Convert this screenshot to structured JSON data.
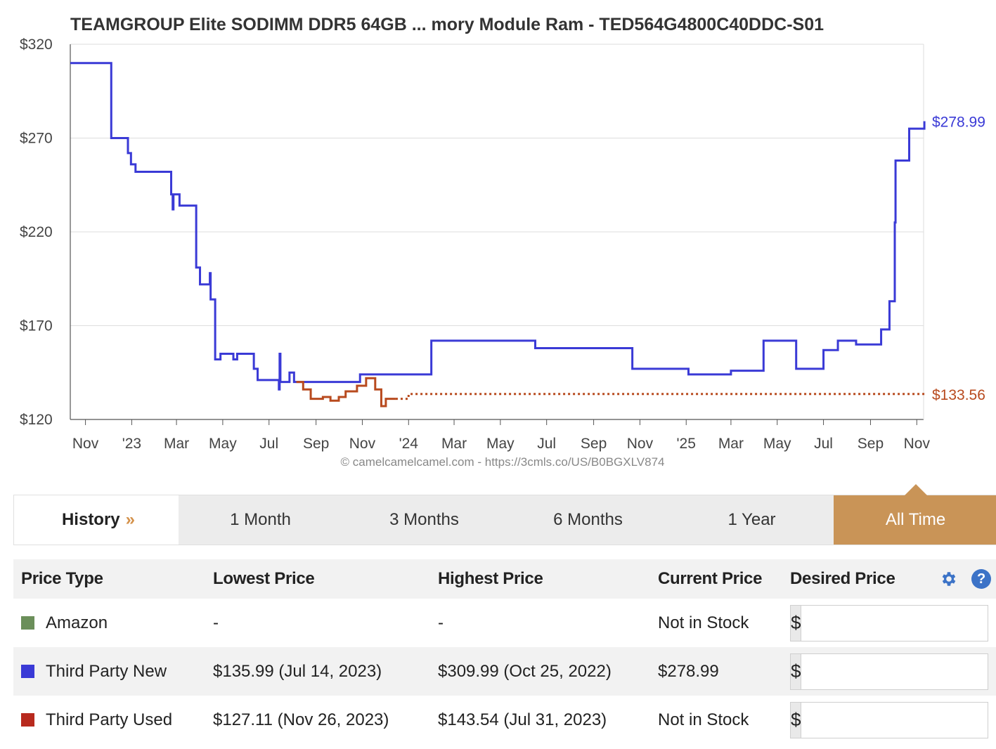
{
  "chart_data": {
    "type": "line",
    "title": "TEAMGROUP Elite SODIMM DDR5 64GB ... mory Module Ram - TED564G4800C40DDC-S01",
    "credit": "© camelcamelcamel.com - https://3cmls.co/US/B0BGXLV874",
    "ylim": [
      120,
      320
    ],
    "yticks": [
      120,
      170,
      220,
      270,
      320
    ],
    "ytick_labels": [
      "$120",
      "$170",
      "$220",
      "$270",
      "$320"
    ],
    "xlim": [
      "2022-10-12",
      "2025-11-10"
    ],
    "xtick_labels": [
      {
        "date": "2022-11-01",
        "label": "Nov"
      },
      {
        "date": "2023-01-01",
        "label": "'23"
      },
      {
        "date": "2023-03-01",
        "label": "Mar"
      },
      {
        "date": "2023-05-01",
        "label": "May"
      },
      {
        "date": "2023-07-01",
        "label": "Jul"
      },
      {
        "date": "2023-09-01",
        "label": "Sep"
      },
      {
        "date": "2023-11-01",
        "label": "Nov"
      },
      {
        "date": "2024-01-01",
        "label": "'24"
      },
      {
        "date": "2024-03-01",
        "label": "Mar"
      },
      {
        "date": "2024-05-01",
        "label": "May"
      },
      {
        "date": "2024-07-01",
        "label": "Jul"
      },
      {
        "date": "2024-09-01",
        "label": "Sep"
      },
      {
        "date": "2024-11-01",
        "label": "Nov"
      },
      {
        "date": "2025-01-01",
        "label": "'25"
      },
      {
        "date": "2025-03-01",
        "label": "Mar"
      },
      {
        "date": "2025-05-01",
        "label": "May"
      },
      {
        "date": "2025-07-01",
        "label": "Jul"
      },
      {
        "date": "2025-09-01",
        "label": "Sep"
      },
      {
        "date": "2025-11-01",
        "label": "Nov"
      }
    ],
    "grid": true,
    "series": [
      {
        "name": "Third Party New",
        "color": "#3a3ad6",
        "style": "step",
        "end_label": "$278.99",
        "points": [
          [
            "2022-10-12",
            309.99
          ],
          [
            "2022-12-05",
            270
          ],
          [
            "2022-12-27",
            262
          ],
          [
            "2022-12-31",
            256
          ],
          [
            "2023-01-06",
            252
          ],
          [
            "2023-02-22",
            240
          ],
          [
            "2023-02-24",
            232
          ],
          [
            "2023-02-25",
            240
          ],
          [
            "2023-03-05",
            234
          ],
          [
            "2023-03-27",
            201
          ],
          [
            "2023-04-01",
            192
          ],
          [
            "2023-04-14",
            198
          ],
          [
            "2023-04-15",
            184
          ],
          [
            "2023-04-21",
            152
          ],
          [
            "2023-04-28",
            155
          ],
          [
            "2023-05-15",
            152
          ],
          [
            "2023-05-20",
            155
          ],
          [
            "2023-06-11",
            147
          ],
          [
            "2023-06-16",
            141
          ],
          [
            "2023-07-14",
            135.99
          ],
          [
            "2023-07-15",
            155
          ],
          [
            "2023-07-16",
            140
          ],
          [
            "2023-07-28",
            145
          ],
          [
            "2023-08-03",
            140
          ],
          [
            "2023-09-01",
            140
          ],
          [
            "2023-10-29",
            144
          ],
          [
            "2024-01-31",
            162
          ],
          [
            "2024-06-16",
            158
          ],
          [
            "2024-10-22",
            147
          ],
          [
            "2025-01-04",
            144
          ],
          [
            "2025-03-01",
            146
          ],
          [
            "2025-04-13",
            162
          ],
          [
            "2025-05-26",
            147
          ],
          [
            "2025-07-01",
            157
          ],
          [
            "2025-07-20",
            162
          ],
          [
            "2025-08-13",
            160
          ],
          [
            "2025-09-15",
            168
          ],
          [
            "2025-09-26",
            183
          ],
          [
            "2025-10-03",
            225
          ],
          [
            "2025-10-04",
            258
          ],
          [
            "2025-10-22",
            275
          ],
          [
            "2025-11-11",
            278.99
          ]
        ]
      },
      {
        "name": "Third Party Used",
        "color": "#b84a1e",
        "style": "step",
        "end_label": "$133.56",
        "points": [
          [
            "2023-08-06",
            140
          ],
          [
            "2023-08-15",
            136
          ],
          [
            "2023-08-25",
            131
          ],
          [
            "2023-09-10",
            132
          ],
          [
            "2023-09-20",
            130
          ],
          [
            "2023-10-01",
            132
          ],
          [
            "2023-10-10",
            135
          ],
          [
            "2023-10-25",
            138
          ],
          [
            "2023-11-06",
            142
          ],
          [
            "2023-11-18",
            136
          ],
          [
            "2023-11-26",
            127.11
          ],
          [
            "2023-12-02",
            131
          ],
          [
            "2023-12-15",
            131
          ]
        ],
        "dotted_points": [
          [
            "2023-12-15",
            131
          ],
          [
            "2024-01-01",
            133.56
          ],
          [
            "2025-11-11",
            133.56
          ]
        ]
      }
    ]
  },
  "tabs": {
    "history_label": "History",
    "history_arrows": "»",
    "items": [
      "1 Month",
      "3 Months",
      "6 Months",
      "1 Year",
      "All Time"
    ],
    "active": "All Time"
  },
  "table": {
    "headers": [
      "Price Type",
      "Lowest Price",
      "Highest Price",
      "Current Price",
      "Desired Price"
    ],
    "rows": [
      {
        "type": "Amazon",
        "color": "#6b8f5a",
        "lowest": "-",
        "highest": "-",
        "current": "Not in Stock"
      },
      {
        "type": "Third Party New",
        "color": "#3a3ad6",
        "lowest": "$135.99 (Jul 14, 2023)",
        "highest": "$309.99 (Oct 25, 2022)",
        "current": "$278.99"
      },
      {
        "type": "Third Party Used",
        "color": "#b82a1e",
        "lowest": "$127.11 (Nov 26, 2023)",
        "highest": "$143.54 (Jul 31, 2023)",
        "current": "Not in Stock"
      }
    ],
    "currency_symbol": "$"
  }
}
